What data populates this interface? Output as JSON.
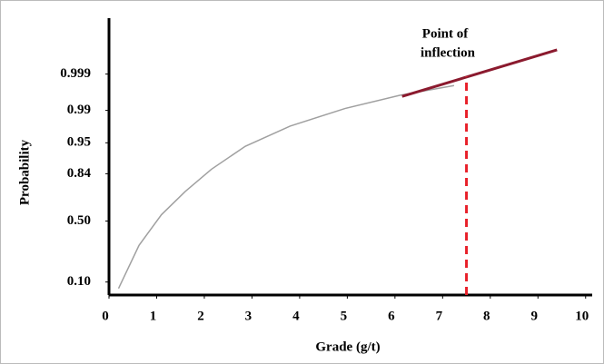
{
  "chart_data": {
    "type": "line",
    "yscale": "probability",
    "x_label": "Grade (g/t)",
    "y_label": "Probability",
    "annotation": [
      "Point of",
      "inflection"
    ],
    "xlim": [
      0,
      10.1
    ],
    "xticks": [
      0,
      1,
      2,
      3,
      4,
      5,
      6,
      7,
      8,
      9,
      10
    ],
    "ylim": [
      0.06,
      0.99999
    ],
    "yticks": [
      {
        "value": 0.1,
        "label": "0.10"
      },
      {
        "value": 0.5,
        "label": "0.50"
      },
      0.84,
      0.95,
      0.99,
      0.999
    ],
    "series": [
      {
        "color": "#a0a0a0",
        "x": [
          0.2,
          0.63,
          1.1,
          1.6,
          2.15,
          2.86,
          3.8,
          4.95,
          6.1,
          7.24
        ],
        "values": [
          0.078,
          0.305,
          0.553,
          0.733,
          0.862,
          0.942,
          0.977,
          0.991,
          0.9959,
          0.9978
        ]
      }
    ],
    "tangent": {
      "color": "#8b1a2e",
      "x": [
        6.15,
        9.4
      ],
      "values": [
        0.9956,
        0.99984
      ]
    },
    "inflection": {
      "color": "#e8202a",
      "x": 7.5,
      "y": 0.9988
    }
  }
}
